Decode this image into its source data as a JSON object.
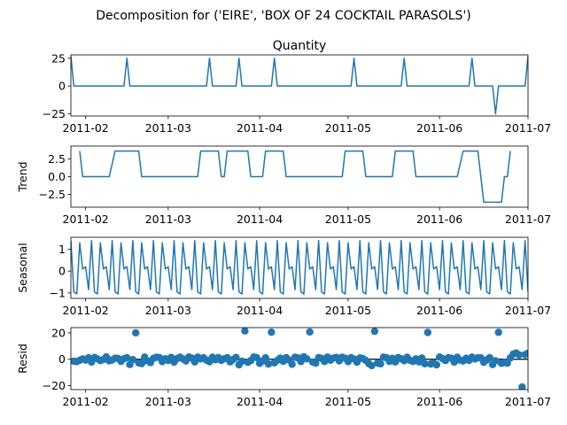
{
  "figure_title": "Decomposition for ('EIRE', 'BOX OF 24 COCKTAIL PARASOLS')",
  "colors": {
    "series": "#1f77b4",
    "axis": "#000000",
    "zero_line": "#000000"
  },
  "x_tick_labels": [
    "2011-02",
    "2011-03",
    "2011-04",
    "2011-05",
    "2011-06",
    "2011-07"
  ],
  "chart_data": [
    {
      "type": "line",
      "title": "Quantity",
      "ylabel": "",
      "xlim": [
        "2011-01-27",
        "2011-07-01"
      ],
      "ylim": [
        -27,
        28
      ],
      "yticks": [
        {
          "value": 25,
          "label": "25"
        },
        {
          "value": 0,
          "label": "0"
        },
        {
          "value": -25,
          "label": "−25"
        }
      ],
      "points": [
        [
          "2011-01-27",
          27
        ],
        [
          "2011-01-28",
          0
        ],
        [
          "2011-02-14",
          0
        ],
        [
          "2011-02-15",
          25
        ],
        [
          "2011-02-16",
          0
        ],
        [
          "2011-03-14",
          0
        ],
        [
          "2011-03-15",
          25
        ],
        [
          "2011-03-16",
          0
        ],
        [
          "2011-03-24",
          0
        ],
        [
          "2011-03-25",
          25
        ],
        [
          "2011-03-26",
          0
        ],
        [
          "2011-04-05",
          0
        ],
        [
          "2011-04-06",
          25
        ],
        [
          "2011-04-07",
          0
        ],
        [
          "2011-05-02",
          0
        ],
        [
          "2011-05-03",
          25
        ],
        [
          "2011-05-04",
          0
        ],
        [
          "2011-05-19",
          0
        ],
        [
          "2011-05-20",
          25
        ],
        [
          "2011-05-21",
          0
        ],
        [
          "2011-06-11",
          0
        ],
        [
          "2011-06-12",
          25
        ],
        [
          "2011-06-13",
          0
        ],
        [
          "2011-06-19",
          0
        ],
        [
          "2011-06-20",
          -25
        ],
        [
          "2011-06-21",
          0
        ],
        [
          "2011-06-30",
          0
        ],
        [
          "2011-07-01",
          27
        ]
      ]
    },
    {
      "type": "line",
      "title": "",
      "ylabel": "Trend",
      "xlim": [
        "2011-01-27",
        "2011-07-01"
      ],
      "ylim": [
        -4.3,
        4.3
      ],
      "yticks": [
        {
          "value": 2.5,
          "label": "2.5"
        },
        {
          "value": 0,
          "label": "0.0"
        },
        {
          "value": -2.5,
          "label": "−2.5"
        }
      ],
      "points": [
        [
          "2011-01-30",
          3.6
        ],
        [
          "2011-01-31",
          0
        ],
        [
          "2011-02-09",
          0
        ],
        [
          "2011-02-11",
          3.6
        ],
        [
          "2011-02-19",
          3.6
        ],
        [
          "2011-02-20",
          0
        ],
        [
          "2011-03-11",
          0
        ],
        [
          "2011-03-12",
          3.6
        ],
        [
          "2011-03-18",
          3.6
        ],
        [
          "2011-03-19",
          0
        ],
        [
          "2011-03-20",
          0
        ],
        [
          "2011-03-21",
          3.6
        ],
        [
          "2011-03-28",
          3.6
        ],
        [
          "2011-03-29",
          0
        ],
        [
          "2011-04-02",
          0
        ],
        [
          "2011-04-03",
          3.6
        ],
        [
          "2011-04-09",
          3.6
        ],
        [
          "2011-04-10",
          0
        ],
        [
          "2011-04-29",
          0
        ],
        [
          "2011-04-30",
          3.6
        ],
        [
          "2011-05-06",
          3.6
        ],
        [
          "2011-05-07",
          0
        ],
        [
          "2011-05-16",
          0
        ],
        [
          "2011-05-17",
          3.6
        ],
        [
          "2011-05-23",
          3.6
        ],
        [
          "2011-05-24",
          0
        ],
        [
          "2011-06-07",
          0
        ],
        [
          "2011-06-09",
          3.6
        ],
        [
          "2011-06-14",
          3.6
        ],
        [
          "2011-06-16",
          -3.6
        ],
        [
          "2011-06-22",
          -3.6
        ],
        [
          "2011-06-23",
          0
        ],
        [
          "2011-06-24",
          0
        ],
        [
          "2011-06-25",
          3.6
        ]
      ]
    },
    {
      "type": "line",
      "title": "",
      "ylabel": "Seasonal",
      "xlim": [
        "2011-01-27",
        "2011-07-01"
      ],
      "ylim": [
        -1.25,
        1.55
      ],
      "yticks": [
        {
          "value": 1,
          "label": "1"
        },
        {
          "value": 0,
          "label": "0"
        },
        {
          "value": -1,
          "label": "−1"
        }
      ],
      "period_days": 7,
      "pattern": [
        1.4,
        -0.95,
        -1.05,
        1.3,
        0.1,
        0.2,
        -0.85
      ],
      "pattern_start": "2011-01-27",
      "pattern_end": "2011-07-01"
    },
    {
      "type": "scatter",
      "title": "",
      "ylabel": "Resid",
      "xlim": [
        "2011-01-27",
        "2011-07-01"
      ],
      "ylim": [
        -23,
        24
      ],
      "yticks": [
        {
          "value": 20,
          "label": "20"
        },
        {
          "value": 0,
          "label": "0"
        },
        {
          "value": -20,
          "label": "−20"
        }
      ],
      "zero_line": true,
      "x_start": "2011-01-28",
      "values": [
        -1.5,
        -1.8,
        -0.8,
        0.2,
        -0.6,
        1.1,
        -2.1,
        1.4,
        0.3,
        -1.0,
        -0.2,
        1.8,
        -1.2,
        -0.5,
        0.8,
        0.6,
        -1.6,
        0.4,
        1.2,
        -4.0,
        -0.3,
        20.0,
        -2.8,
        -3.3,
        1.6,
        -1.2,
        -2.5,
        0.7,
        1.5,
        1.3,
        -1.8,
        0.4,
        -0.9,
        1.4,
        -2.2,
        0.5,
        1.5,
        0.2,
        -1.3,
        1.7,
        0.9,
        -2.0,
        1.6,
        0.3,
        1.1,
        -0.7,
        -1.9,
        1.5,
        -0.4,
        1.3,
        -0.9,
        0.4,
        1.2,
        -2.0,
        -0.2,
        1.4,
        -4.2,
        -1.5,
        21.5,
        -2.3,
        -1.0,
        1.7,
        1.3,
        -3.1,
        -1.4,
        1.1,
        -3.6,
        20.5,
        -2.7,
        -0.8,
        0.9,
        -1.5,
        1.2,
        -0.6,
        -3.8,
        1.5,
        1.0,
        -1.7,
        1.9,
        0.3,
        20.7,
        -2.1,
        -3.0,
        1.3,
        0.6,
        -1.7,
        1.6,
        -0.7,
        0.9,
        1.4,
        -1.2,
        1.5,
        0.8,
        -1.8,
        1.2,
        0.2,
        -2.2,
        1.0,
        0.5,
        -0.9,
        -3.3,
        -4.8,
        21.2,
        -2.9,
        -3.5,
        1.6,
        1.1,
        -1.6,
        0.7,
        -2.0,
        1.3,
        0.4,
        -1.1,
        1.5,
        -0.8,
        -1.6,
        0.3,
        -2.0,
        0.9,
        -3.4,
        20.3,
        -3.6,
        -2.8,
        -4.2,
        1.7,
        0.5,
        -1.0,
        1.2,
        0.8,
        -2.1,
        1.5,
        -0.6,
        -1.3,
        0.7,
        -0.9,
        1.6,
        0.2,
        1.1,
        1.0,
        -2.3,
        -0.5,
        1.2,
        -4.0,
        -1.2,
        20.4,
        -3.1,
        -2.5,
        -3.0,
        1.0,
        4.0,
        4.7,
        3.3,
        -21.0,
        3.5,
        4.6,
        3.9,
        3.0,
        1.8,
        -1.1,
        -1.9,
        -3.2,
        -4.1
      ]
    }
  ]
}
